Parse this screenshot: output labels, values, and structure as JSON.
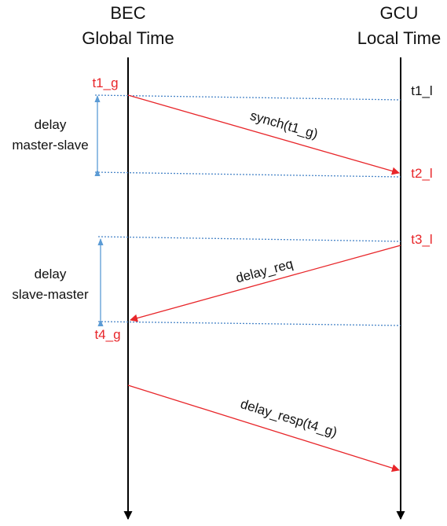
{
  "header": {
    "left": {
      "line1": "BEC",
      "line2": "Global Time"
    },
    "right": {
      "line1": "GCU",
      "line2": "Local Time"
    }
  },
  "timestamps": {
    "t1_g": "t1_g",
    "t1_l": "t1_l",
    "t2_l": "t2_l",
    "t3_l": "t3_l",
    "t4_g": "t4_g"
  },
  "messages": {
    "synch": "synch(t1_g)",
    "delay_req": "delay_req",
    "delay_resp": "delay_resp(t4_g)"
  },
  "delays": {
    "master_slave": {
      "line1": "delay",
      "line2": "master-slave"
    },
    "slave_master": {
      "line1": "delay",
      "line2": "slave-master"
    }
  },
  "colors": {
    "timeline": "#000000",
    "message": "#e8262a",
    "label_red": "#e8262a",
    "label_black": "#111111",
    "sync_line": "#4a86c8",
    "delay_arrow": "#5b9bd5"
  }
}
